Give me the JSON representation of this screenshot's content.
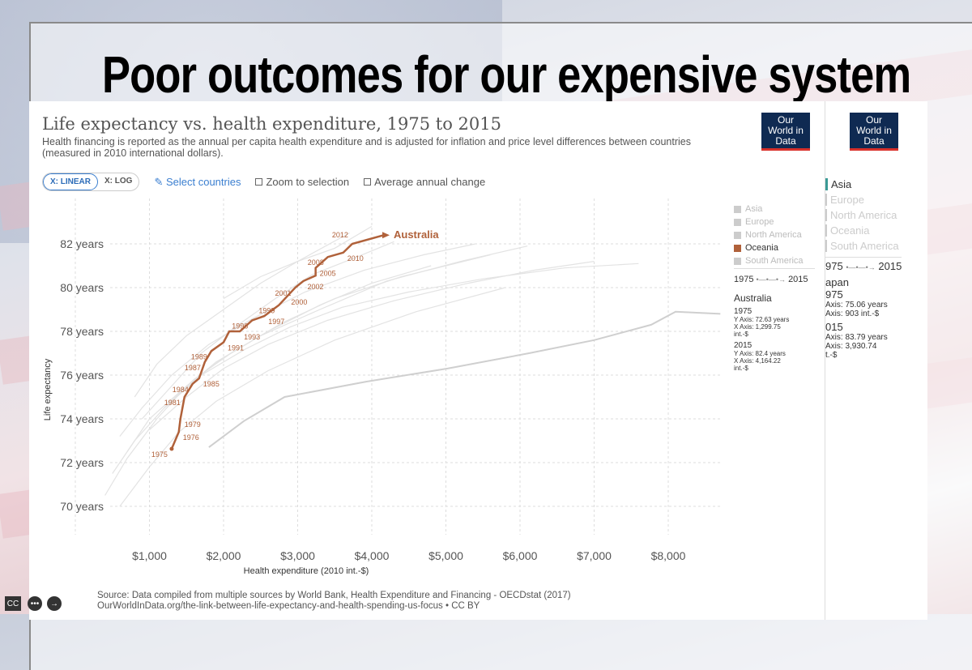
{
  "slide": {
    "title": "Poor outcomes for our expensive system"
  },
  "chart_panel": {
    "title": "Life expectancy vs. health expenditure, 1975 to 2015",
    "subtitle": "Health financing is reported as the annual per capita health expenditure and is adjusted for inflation and price level differences between countries (measured in 2010 international dollars).",
    "logo": "Our World in Data",
    "controls": {
      "linear": "X: LINEAR",
      "log": "X: LOG",
      "select": "Select countries",
      "zoom": "Zoom to selection",
      "avg": "Average annual change"
    },
    "legend": {
      "items": [
        "Asia",
        "Europe",
        "North America",
        "Oceania",
        "South America"
      ],
      "active": "Oceania",
      "timeline_start": "1975",
      "timeline_end": "2015"
    },
    "info": {
      "country": "Australia",
      "y1": "1975",
      "y1_y": "Y Axis: 72.63 years",
      "y1_x": "X Axis: 1,299.75 int.-$",
      "y2": "2015",
      "y2_y": "Y Axis: 82.4 years",
      "y2_x": "X Axis: 4,164.22 int.-$"
    },
    "source": "Source: Data compiled from multiple sources by World Bank, Health Expenditure and Financing - OECDstat (2017)",
    "url": "OurWorldInData.org/the-link-between-life-expectancy-and-health-spending-us-focus • CC BY"
  },
  "second_panel": {
    "logo": "Our World in Data",
    "legend": [
      "Asia",
      "Europe",
      "North America",
      "Oceania",
      "South America"
    ],
    "timeline_start": "975",
    "timeline_end": "2015",
    "country": "apan",
    "y1": "975",
    "y1_y": "Axis: 75.06 years",
    "y1_x": "Axis: 903 int.-$",
    "y2": "015",
    "y2_y": "Axis: 83.79 years",
    "y2_x": "Axis: 3,930.74",
    "y2_unit": "t.-$"
  },
  "player": {
    "cc": "CC"
  },
  "colors": {
    "highlight": "#b0613a",
    "others": "#d6d6d6",
    "logo_bg": "#0f2a52",
    "logo_accent": "#d9312b",
    "link": "#3b7fd0"
  },
  "chart_data": {
    "type": "line",
    "title": "Life expectancy vs. health expenditure, 1975 to 2015",
    "xlabel": "Health expenditure (2010 int.-$)",
    "ylabel": "Life expectancy",
    "xlim": [
      0,
      8800
    ],
    "ylim": [
      69,
      84
    ],
    "x_ticks": [
      "$1,000",
      "$2,000",
      "$3,000",
      "$4,000",
      "$5,000",
      "$6,000",
      "$7,000",
      "$8,000"
    ],
    "x_tick_values": [
      1000,
      2000,
      3000,
      4000,
      5000,
      6000,
      7000,
      8000
    ],
    "y_ticks": [
      "70 years",
      "72 years",
      "74 years",
      "76 years",
      "78 years",
      "80 years",
      "82 years"
    ],
    "y_tick_values": [
      70,
      72,
      74,
      76,
      78,
      80,
      82
    ],
    "grid": true,
    "highlight": {
      "name": "Australia",
      "points": [
        {
          "year": "1975",
          "x": 1300,
          "y": 72.63
        },
        {
          "year": "1976",
          "x": 1396,
          "y": 73.4
        },
        {
          "year": "1979",
          "x": 1418,
          "y": 74.0
        },
        {
          "year": "1981",
          "x": 1473,
          "y": 75.0
        },
        {
          "year": "1984",
          "x": 1582,
          "y": 75.6
        },
        {
          "year": "1985",
          "x": 1670,
          "y": 75.85
        },
        {
          "year": "1987",
          "x": 1747,
          "y": 76.6
        },
        {
          "year": "1989",
          "x": 1835,
          "y": 77.1
        },
        {
          "year": "1991",
          "x": 2000,
          "y": 77.5
        },
        {
          "year": "",
          "x": 2077,
          "y": 78.0
        },
        {
          "year": "1993",
          "x": 2220,
          "y": 78.0
        },
        {
          "year": "1996",
          "x": 2385,
          "y": 78.5
        },
        {
          "year": "1997",
          "x": 2549,
          "y": 78.7
        },
        {
          "year": "1999",
          "x": 2747,
          "y": 79.2
        },
        {
          "year": "2000",
          "x": 2857,
          "y": 79.6
        },
        {
          "year": "2001",
          "x": 2967,
          "y": 80.0
        },
        {
          "year": "2002",
          "x": 3077,
          "y": 80.3
        },
        {
          "year": "",
          "x": 3242,
          "y": 80.55
        },
        {
          "year": "2005",
          "x": 3242,
          "y": 80.9
        },
        {
          "year": "2008",
          "x": 3407,
          "y": 81.4
        },
        {
          "year": "2010",
          "x": 3615,
          "y": 81.6
        },
        {
          "year": "2012",
          "x": 3736,
          "y": 82.0
        },
        {
          "year": "2015",
          "x": 4164,
          "y": 82.4
        }
      ]
    },
    "other_series": [
      {
        "x": [
          1802,
          2275,
          2824,
          3923,
          5022,
          6121,
          7000,
          7769,
          8099,
          8703
        ],
        "y": [
          72.7,
          73.9,
          75.0,
          75.7,
          76.3,
          77.0,
          77.6,
          78.3,
          78.9,
          78.8
        ]
      },
      {
        "x": [
          600,
          900,
          1300,
          1800,
          2400,
          3100,
          3900,
          4700,
          5400
        ],
        "y": [
          73.2,
          74.5,
          76.0,
          77.4,
          78.6,
          79.8,
          80.8,
          81.5,
          82.0
        ]
      },
      {
        "x": [
          700,
          1000,
          1400,
          1900,
          2500,
          3300,
          4200,
          5200,
          6100
        ],
        "y": [
          72.5,
          74.0,
          75.2,
          76.6,
          77.8,
          79.0,
          80.3,
          81.2,
          81.9
        ]
      },
      {
        "x": [
          500,
          800,
          1200,
          1600,
          2100,
          2800,
          3500,
          4400,
          5600
        ],
        "y": [
          71.5,
          73.0,
          74.5,
          75.8,
          77.0,
          78.4,
          79.5,
          80.5,
          81.5
        ]
      },
      {
        "x": [
          900,
          1300,
          1700,
          2200,
          2700,
          3200,
          3800,
          4300
        ],
        "y": [
          74.0,
          75.5,
          77.0,
          78.3,
          79.5,
          80.6,
          81.4,
          82.1
        ]
      },
      {
        "x": [
          400,
          700,
          1100,
          1500,
          2000,
          2600,
          3300,
          4000,
          4800
        ],
        "y": [
          70.5,
          72.2,
          74.0,
          75.5,
          76.8,
          78.0,
          79.2,
          80.2,
          81.0
        ]
      },
      {
        "x": [
          1000,
          1500,
          2000,
          2600,
          3400,
          4300,
          5300,
          6200,
          7000
        ],
        "y": [
          73.5,
          75.0,
          76.3,
          77.4,
          78.5,
          79.4,
          80.2,
          80.8,
          81.2
        ]
      },
      {
        "x": [
          800,
          1100,
          1500,
          2000,
          2500,
          3000,
          3700
        ],
        "y": [
          75.0,
          76.5,
          77.8,
          79.0,
          80.2,
          81.2,
          82.5
        ]
      },
      {
        "x": [
          600,
          1000,
          1400,
          1900,
          2600,
          3500,
          4600,
          5800
        ],
        "y": [
          70.0,
          71.8,
          73.4,
          74.8,
          76.2,
          77.6,
          78.9,
          80.0
        ]
      },
      {
        "x": [
          1200,
          1700,
          2300,
          2900,
          3600,
          4500,
          5500,
          6600,
          7600
        ],
        "y": [
          74.5,
          76.0,
          77.2,
          78.2,
          79.1,
          79.8,
          80.4,
          80.9,
          81.1
        ]
      },
      {
        "x": [
          2000,
          2500,
          3000,
          3500,
          4000
        ],
        "y": [
          79.5,
          80.5,
          81.2,
          81.8,
          82.8
        ]
      }
    ]
  }
}
